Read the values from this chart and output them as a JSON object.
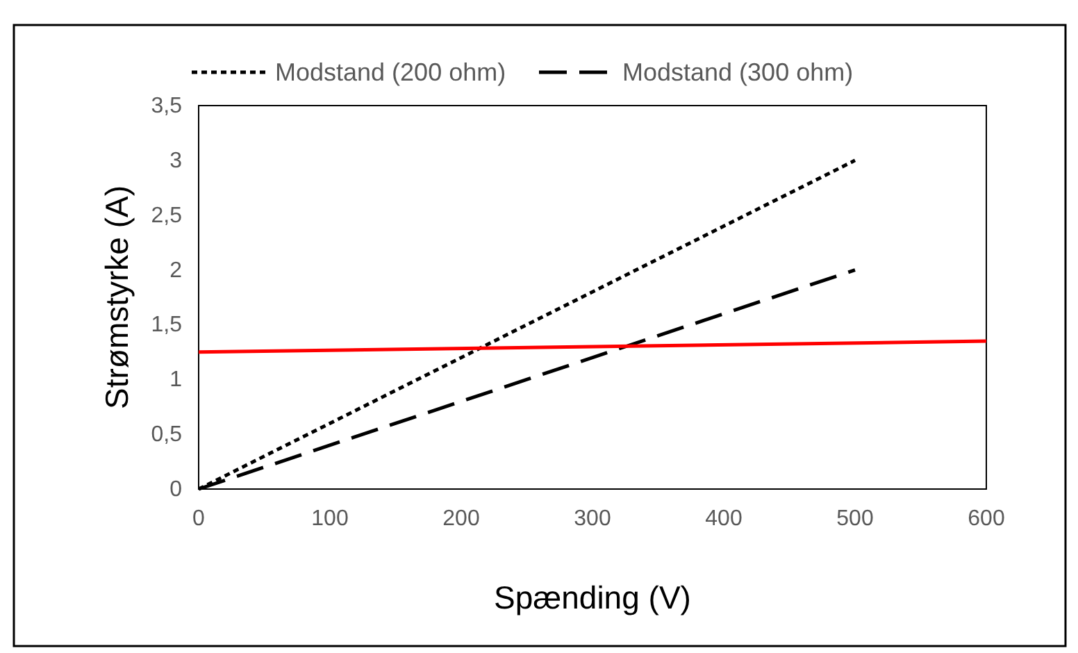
{
  "chart_data": {
    "type": "line",
    "xlabel": "Spænding (V)",
    "ylabel": "Strømstyrke (A)",
    "xlim": [
      0,
      600
    ],
    "xticks": [
      0,
      {
        "value": 100,
        "label": "100"
      },
      {
        "value": 200,
        "label": "200"
      },
      {
        "value": 300,
        "label": "300"
      },
      {
        "value": 400,
        "label": "400"
      },
      {
        "value": 500,
        "label": "500"
      },
      {
        "value": 600,
        "label": "600"
      }
    ],
    "ylim": [
      0,
      3.5
    ],
    "yticks": [
      0,
      {
        "value": 0.5,
        "label": "0,5"
      },
      1,
      {
        "value": 1.5,
        "label": "1,5"
      },
      2,
      {
        "value": 2.5,
        "label": "2,5"
      },
      3,
      {
        "value": 3.5,
        "label": "3,5"
      }
    ],
    "grid": false,
    "legend": "top",
    "marker": "none",
    "series": [
      {
        "name": "Modstand (200 ohm)",
        "color": "#000000",
        "line_style": "dotted",
        "x": [
          0,
          500
        ],
        "values": [
          0,
          3
        ]
      },
      {
        "name": "Modstand (300 ohm)",
        "color": "#000000",
        "line_style": "dashed",
        "x": [
          0,
          500
        ],
        "values": [
          0,
          2
        ]
      },
      {
        "color": "#ff0000",
        "line_style": "solid",
        "x": [
          0,
          600
        ],
        "values": [
          1.25,
          1.35
        ]
      }
    ]
  }
}
